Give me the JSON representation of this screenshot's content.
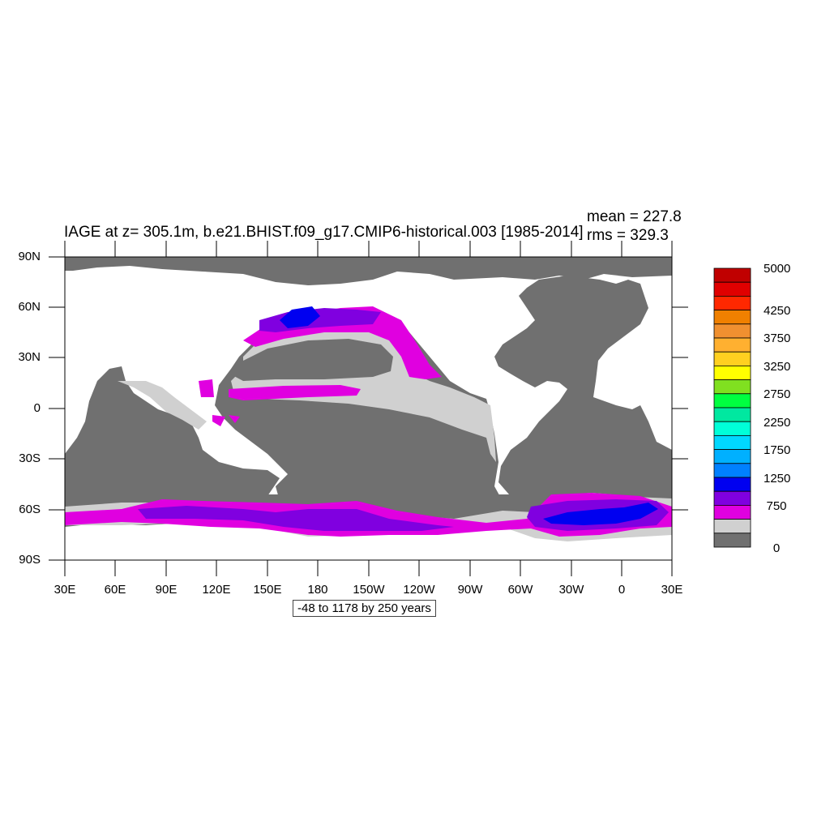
{
  "title": "IAGE at z= 305.1m, b.e21.BHIST.f09_g17.CMIP6-historical.003 [1985-2014]",
  "stats": {
    "mean_label": "mean = 227.8",
    "rms_label": "rms = 329.3"
  },
  "axes": {
    "lat_labels": [
      "90N",
      "60N",
      "30N",
      "0",
      "30S",
      "60S",
      "90S"
    ],
    "lon_labels": [
      "30E",
      "60E",
      "90E",
      "120E",
      "150E",
      "180",
      "150W",
      "120W",
      "90W",
      "60W",
      "30W",
      "0",
      "30E"
    ]
  },
  "contour_info": "-48 to 1178 by 250 years",
  "legend": {
    "colors": [
      "#c00000",
      "#e00000",
      "#ff2800",
      "#f08000",
      "#f09030",
      "#ffb030",
      "#ffd020",
      "#ffff00",
      "#80e020",
      "#00ff40",
      "#00e8a0",
      "#00ffd8",
      "#00d8ff",
      "#00b0ff",
      "#0080ff",
      "#0000f0",
      "#8000e0",
      "#e000e0",
      "#d0d0d0",
      "#707070"
    ],
    "labels": [
      "5000",
      "4250",
      "3750",
      "3250",
      "2750",
      "2250",
      "1750",
      "1250",
      "750",
      "0"
    ]
  },
  "palette": {
    "land": "#ffffff",
    "ocean_low": "#707070",
    "band_250_500": "#d0d0d0",
    "band_500_750": "#e000e0",
    "band_750_1000": "#8000e0",
    "band_1000_1250": "#0000f0"
  }
}
